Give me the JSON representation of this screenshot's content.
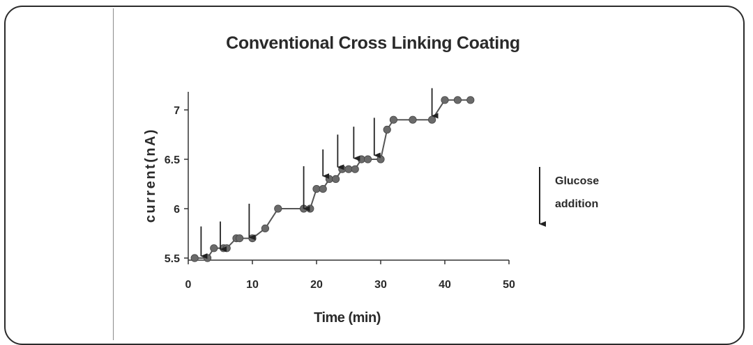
{
  "chart_data": {
    "type": "line",
    "title": "Conventional Cross Linking Coating",
    "xlabel": "Time (min)",
    "ylabel": "current(nA)",
    "xlim": [
      0,
      50
    ],
    "ylim": [
      5.5,
      7.2
    ],
    "x_ticks": [
      0,
      10,
      20,
      30,
      40,
      50
    ],
    "y_ticks": [
      5.5,
      6,
      6.5,
      7
    ],
    "x_tick_labels": [
      "0",
      "10",
      "20",
      "30",
      "40",
      "50"
    ],
    "y_tick_labels": [
      "5.5",
      "6",
      "6.5",
      "7"
    ],
    "grid": false,
    "series": [
      {
        "color": "#6a6a6a",
        "marker": "circle",
        "x": [
          1,
          3,
          4,
          5.5,
          6,
          7.5,
          8,
          10,
          12,
          14,
          18,
          19,
          20,
          21,
          22,
          23,
          24,
          25,
          26,
          27,
          28,
          30,
          31,
          32,
          35,
          38,
          40,
          42,
          44
        ],
        "y": [
          5.5,
          5.5,
          5.6,
          5.6,
          5.6,
          5.7,
          5.7,
          5.7,
          5.8,
          6.0,
          6.0,
          6.0,
          6.2,
          6.2,
          6.3,
          6.3,
          6.4,
          6.4,
          6.4,
          6.5,
          6.5,
          6.5,
          6.8,
          6.9,
          6.9,
          6.9,
          7.1,
          7.1,
          7.1
        ]
      }
    ],
    "annotations": {
      "type": "arrow",
      "label": "Glucose addition",
      "label_lines": [
        "Glucose",
        "addition"
      ],
      "arrows": [
        {
          "x": 2,
          "y_start": 5.82,
          "y_end": 5.52
        },
        {
          "x": 5,
          "y_start": 5.87,
          "y_end": 5.59
        },
        {
          "x": 9.5,
          "y_start": 6.05,
          "y_end": 5.71
        },
        {
          "x": 18,
          "y_start": 6.43,
          "y_end": 6.0
        },
        {
          "x": 21,
          "y_start": 6.6,
          "y_end": 6.33
        },
        {
          "x": 23.3,
          "y_start": 6.75,
          "y_end": 6.42
        },
        {
          "x": 25.8,
          "y_start": 6.83,
          "y_end": 6.51
        },
        {
          "x": 29,
          "y_start": 6.92,
          "y_end": 6.54
        },
        {
          "x": 38,
          "y_start": 7.22,
          "y_end": 6.94
        }
      ]
    },
    "legend_position": "right"
  }
}
